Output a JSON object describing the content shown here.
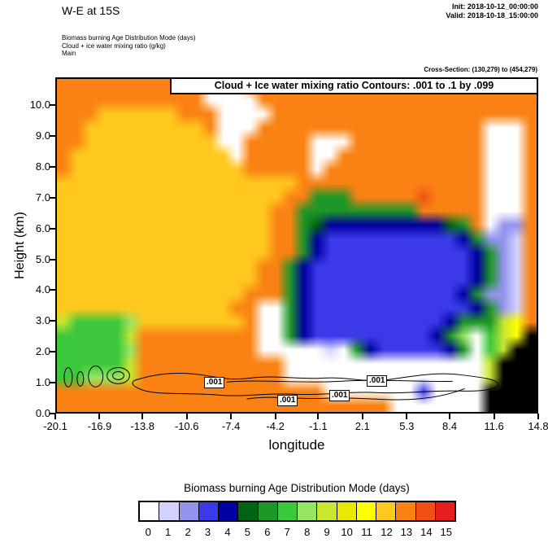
{
  "header": {
    "title": "W-E at 15S",
    "init_label": "Init: 2018-10-12_00:00:00",
    "valid_label": "Valid: 2018-10-18_15:00:00",
    "field_lines": [
      "Biomass burning Age Distribution Mode   (days)",
      "Cloud + ice water mixing ratio   (g/kg)",
      "Main"
    ],
    "cross_section": "Cross-Section: (130,279) to (454,279)"
  },
  "plot": {
    "inner_title": "Cloud + Ice water mixing ratio Contours: .001 to .1 by .099",
    "xlabel": "longitude",
    "ylabel": "Height (km)",
    "x_ticks": [
      "-20.1",
      "-16.9",
      "-13.8",
      "-10.6",
      "-7.4",
      "-4.2",
      "-1.1",
      "2.1",
      "5.3",
      "8.4",
      "11.6",
      "14.8"
    ],
    "y_ticks": [
      "0.0",
      "1.0",
      "2.0",
      "3.0",
      "4.0",
      "5.0",
      "6.0",
      "7.0",
      "8.0",
      "9.0",
      "10.0"
    ],
    "contour_labels": [
      ".001",
      ".001",
      ".001",
      ".001"
    ]
  },
  "colorbar": {
    "title": "Biomass burning Age Distribution Mode  (days)",
    "labels": [
      "0",
      "1",
      "2",
      "3",
      "4",
      "5",
      "6",
      "7",
      "8",
      "9",
      "10",
      "11",
      "12",
      "13",
      "14",
      "15"
    ],
    "colors": [
      "#ffffff",
      "#d2d2ff",
      "#9494f0",
      "#3a3ae8",
      "#0000a0",
      "#006414",
      "#1e9628",
      "#3cc83c",
      "#96e664",
      "#c8e632",
      "#e8e800",
      "#ffff00",
      "#ffc81e",
      "#fa8214",
      "#f05014",
      "#e61e1e"
    ]
  },
  "chart_data": {
    "type": "heatmap",
    "title": "Biomass burning Age Distribution Mode (days), W-E cross-section at 15S",
    "xlabel": "longitude",
    "ylabel": "Height (km)",
    "x_range": [
      -20.1,
      14.8
    ],
    "y_range": [
      0,
      10.9
    ],
    "value_field": "Biomass burning age (days)",
    "legend_values": [
      0,
      1,
      2,
      3,
      4,
      5,
      6,
      7,
      8,
      9,
      10,
      11,
      12,
      13,
      14,
      15
    ],
    "palette": [
      "#ffffff",
      "#d2d2ff",
      "#9494f0",
      "#3a3ae8",
      "#0000a0",
      "#006414",
      "#1e9628",
      "#3cc83c",
      "#96e664",
      "#c8e632",
      "#e8e800",
      "#ffff00",
      "#ffc81e",
      "#fa8214",
      "#f05014",
      "#e61e1e"
    ],
    "terrain_color": "#000000",
    "grid_note": "rows top(10.9km) to bottom(0km), 36 columns lon -20.1 to 14.8; hex digit = age in days (0-15), k = terrain",
    "grid_rows_top_to_bottom": [
      "ddddddddddd000dddddddddddddddddddddd",
      "ddddddddddd0000ddddddddddddddddddddd",
      "dddccccccddd0000dddddddddddddddddddd",
      "ddcccccccccd000ddddddddddddddddd000d",
      "ddcccccccccc00ddddd000dddddddddd000d",
      "dcccccccccccc0ddddd00ddddddddddd000d",
      "dcccccccccccccddddd0dddddddddddd000d",
      "ccccccccccccccccccdddddddddddddd000d",
      "cccccccccccccccccdd666dddddedddd000d",
      "ccccccccccccccccdd666666666ddddd000d",
      "ccccccccccccccccdd6544444444456d022d",
      "ccccccccccccccccdd64333333333346221d",
      "ccccccccccccccccdd64333333333334621d",
      "cccccccccccccccdd643333333333334621d",
      "cccccccccccccccdd643333333333334621d",
      "ccccccccccccccddd643333333333346221d",
      "cccccccccccccdd00643333333333334621d",
      "977778ccccccccd0064333333333346669bd",
      "777779ddddddddd0064333333333468079bk",
      "777778ddddddddd0000010643333346079kk",
      "777779ddddddddddd0000000000000009kkk",
      "778889ddddddddddd0000000000000009kkk",
      "dddddddddddddddddddd000000030000kkkk",
      "ddddddddddddddddddddddddd0000000kkkk"
    ],
    "contour_overlay": {
      "field": "Cloud + Ice water mixing ratio (g/kg)",
      "levels": [
        0.001,
        0.1
      ],
      "visible_label": ".001"
    }
  }
}
